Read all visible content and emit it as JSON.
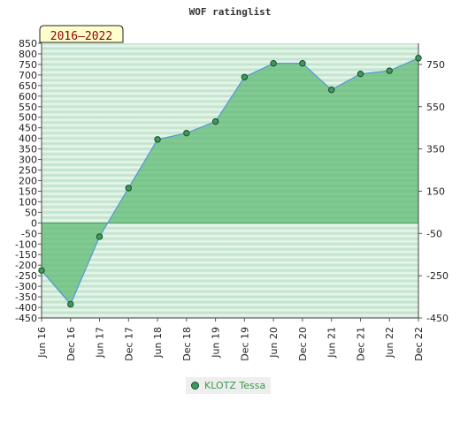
{
  "chart_data": {
    "type": "area",
    "title": "WOF ratinglist",
    "period_label": "2016–2022",
    "categories": [
      "Jun 16",
      "Dec 16",
      "Jun 17",
      "Dec 17",
      "Jun 18",
      "Dec 18",
      "Jun 19",
      "Dec 19",
      "Jun 20",
      "Dec 20",
      "Jun 21",
      "Dec 21",
      "Jun 22",
      "Dec 22"
    ],
    "series": [
      {
        "name": "KLOTZ Tessa",
        "values": [
          -225,
          -385,
          -65,
          165,
          395,
          425,
          480,
          690,
          755,
          755,
          630,
          705,
          720,
          780
        ]
      }
    ],
    "ylim": [
      -450,
      850
    ],
    "left_ticks": [
      850,
      800,
      750,
      700,
      650,
      600,
      550,
      500,
      450,
      400,
      350,
      300,
      250,
      200,
      150,
      100,
      50,
      0,
      -50,
      -100,
      -150,
      -200,
      -250,
      -300,
      -350,
      -400,
      -450
    ],
    "right_ticks": [
      750,
      550,
      350,
      150,
      -50,
      -250,
      -450
    ],
    "colors": {
      "line": "#5599dd",
      "area": "#5cb870",
      "marker": "#3d9a5a",
      "legend_text": "#3a9a4a",
      "badge_bg": "#ffffcc",
      "badge_text": "#8b0000"
    }
  },
  "legend": {
    "label": "KLOTZ Tessa"
  }
}
